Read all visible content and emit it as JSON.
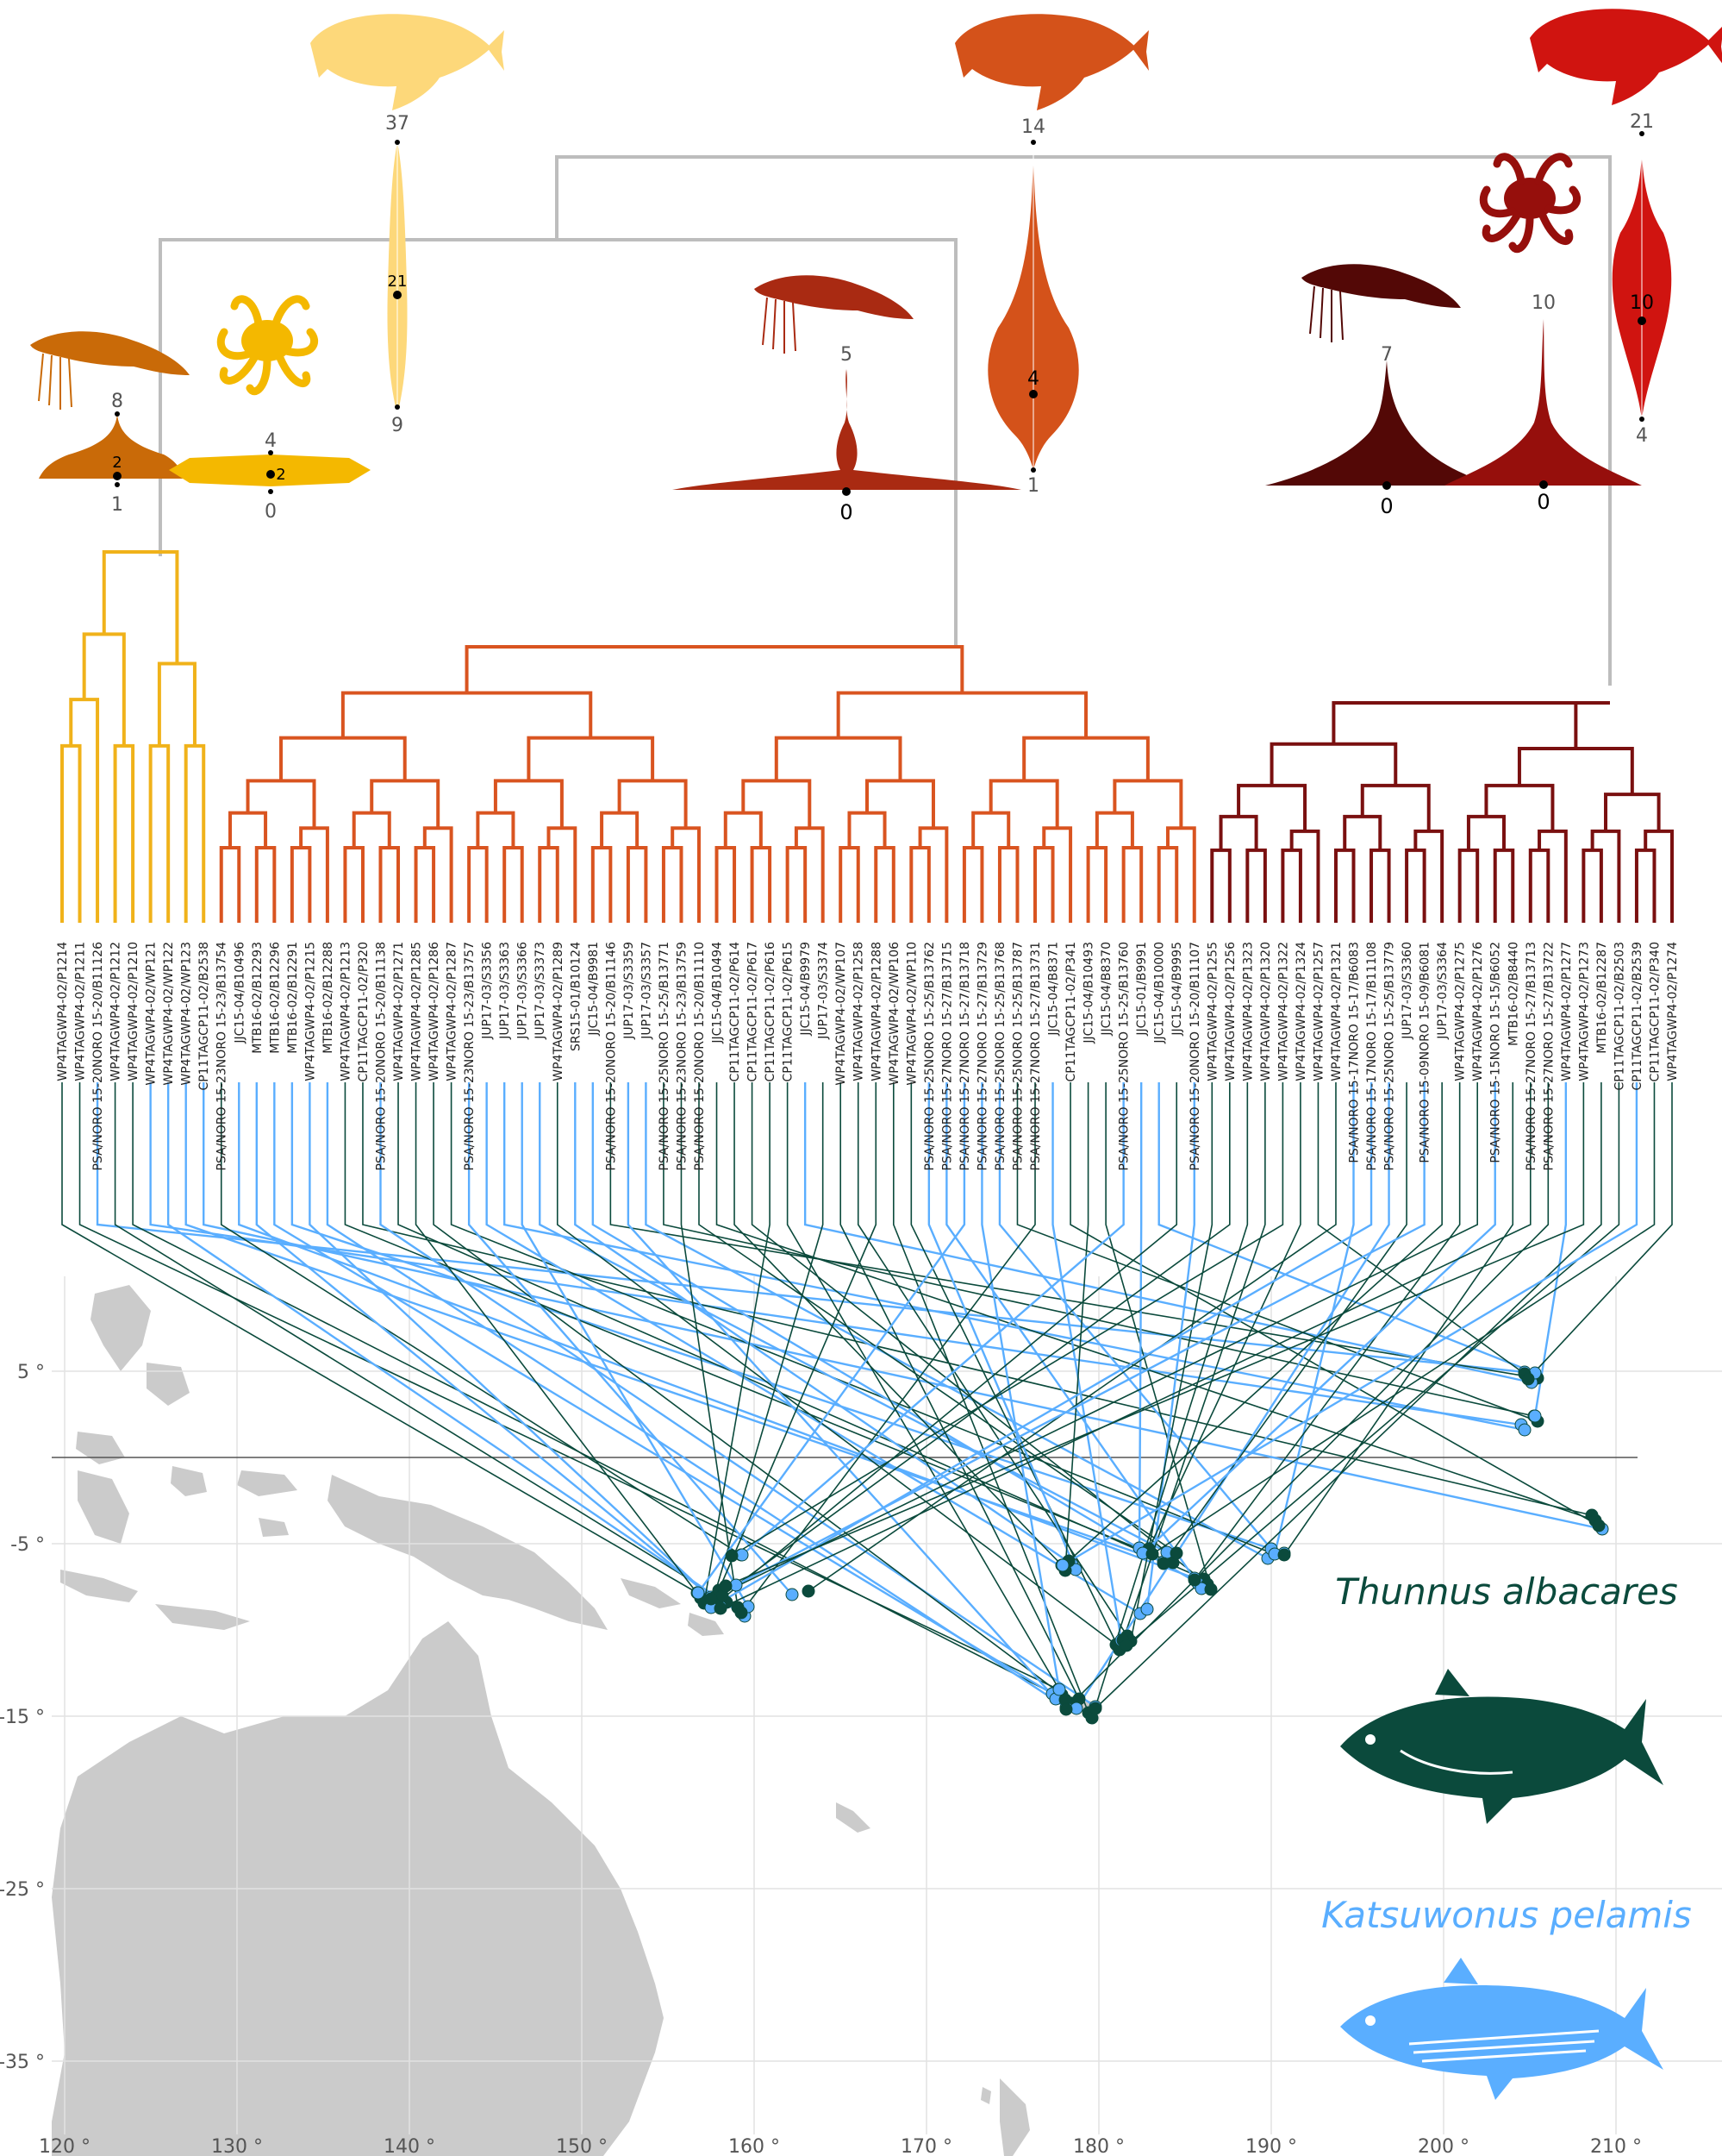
{
  "colors": {
    "yellowfin": "#0b4a3c",
    "skipjack": "#5aaeff",
    "ocean": "#ffffff",
    "land": "#c9c9c9",
    "backbone": "#bbbbbb",
    "cladeA": "#f0b21a",
    "cladeB": "#d95420",
    "cladeC": "#7a1010"
  },
  "map": {
    "lon_ticks": [
      "120 °",
      "130 °",
      "140 °",
      "150 °",
      "160 °",
      "170 °",
      "180 °",
      "190 °",
      "200 °",
      "210 °"
    ],
    "lat_ticks": [
      "5 °",
      "-5 °",
      "-15 °",
      "-25 °",
      "-35 °"
    ]
  },
  "legend": {
    "species_1": "Thunnus albacares",
    "species_2": "Katsuwonus pelamis"
  },
  "silhouettes": {
    "fish_1": "fish-icon",
    "fish_2": "fish-icon",
    "fish_3": "fish-icon",
    "shrimp_1": "shrimp-icon",
    "shrimp_2": "shrimp-icon",
    "shrimp_3": "shrimp-icon",
    "octopus_1": "octopus-icon",
    "octopus_2": "octopus-icon"
  },
  "violins": [
    {
      "id": "shrimp-a",
      "max": "8",
      "median": "2",
      "min": "1",
      "color": "#c96a08"
    },
    {
      "id": "octopus-a",
      "max": "4",
      "median": "2",
      "min": "0",
      "color": "#f4b800"
    },
    {
      "id": "fish-a",
      "max": "37",
      "median": "21",
      "min": "9",
      "color": "#fdd87a"
    },
    {
      "id": "shrimp-b",
      "max": "5",
      "median": "0",
      "min": "",
      "color": "#a92a12"
    },
    {
      "id": "fish-b",
      "max": "14",
      "median": "4",
      "min": "1",
      "color": "#d4521a"
    },
    {
      "id": "shrimp-c",
      "max": "7",
      "median": "0",
      "min": "",
      "color": "#530806"
    },
    {
      "id": "octopus-c",
      "max": "10",
      "median": "0",
      "min": "",
      "color": "#960f0c"
    },
    {
      "id": "fish-c",
      "max": "21",
      "median": "10",
      "min": "4",
      "color": "#d01410"
    }
  ],
  "leaves": [
    {
      "label": "WP4TAGWP4-02/P1214",
      "sp": "T"
    },
    {
      "label": "WP4TAGWP4-02/P1211",
      "sp": "T"
    },
    {
      "label": "PSA/NORO 15-20NORO 15-20/B11126",
      "sp": "K"
    },
    {
      "label": "WP4TAGWP4-02/P1212",
      "sp": "T"
    },
    {
      "label": "WP4TAGWP4-02/P1210",
      "sp": "T"
    },
    {
      "label": "WP4TAGWP4-02/WP121",
      "sp": "K"
    },
    {
      "label": "WP4TAGWP4-02/WP122",
      "sp": "K"
    },
    {
      "label": "WP4TAGWP4-02/WP123",
      "sp": "K"
    },
    {
      "label": "CP11TAGCP11-02/B2538",
      "sp": "K"
    },
    {
      "label": "PSA/NORO 15-23NORO 15-23/B13754",
      "sp": "T"
    },
    {
      "label": "JJC15-04/B10496",
      "sp": "K"
    },
    {
      "label": "MTB16-02/B12293",
      "sp": "K"
    },
    {
      "label": "MTB16-02/B12296",
      "sp": "K"
    },
    {
      "label": "MTB16-02/B12291",
      "sp": "K"
    },
    {
      "label": "WP4TAGWP4-02/P1215",
      "sp": "K"
    },
    {
      "label": "MTB16-02/B12288",
      "sp": "K"
    },
    {
      "label": "WP4TAGWP4-02/P1213",
      "sp": "T"
    },
    {
      "label": "CP11TAGCP11-02/P320",
      "sp": "T"
    },
    {
      "label": "PSA/NORO 15-20NORO 15-20/B11138",
      "sp": "K"
    },
    {
      "label": "WP4TAGWP4-02/P1271",
      "sp": "T"
    },
    {
      "label": "WP4TAGWP4-02/P1285",
      "sp": "T"
    },
    {
      "label": "WP4TAGWP4-02/P1286",
      "sp": "T"
    },
    {
      "label": "WP4TAGWP4-02/P1287",
      "sp": "T"
    },
    {
      "label": "PSA/NORO 15-23NORO 15-23/B13757",
      "sp": "K"
    },
    {
      "label": "JUP17-03/S3356",
      "sp": "K"
    },
    {
      "label": "JUP17-03/S3363",
      "sp": "K"
    },
    {
      "label": "JUP17-03/S3366",
      "sp": "K"
    },
    {
      "label": "JUP17-03/S3373",
      "sp": "K"
    },
    {
      "label": "WP4TAGWP4-02/P1289",
      "sp": "T"
    },
    {
      "label": "SRS15-01/B10124",
      "sp": "K"
    },
    {
      "label": "JJC15-04/B9981",
      "sp": "K"
    },
    {
      "label": "PSA/NORO 15-20NORO 15-20/B11146",
      "sp": "T"
    },
    {
      "label": "JUP17-03/S3359",
      "sp": "K"
    },
    {
      "label": "JUP17-03/S3357",
      "sp": "K"
    },
    {
      "label": "PSA/NORO 15-25NORO 15-25/B13771",
      "sp": "T"
    },
    {
      "label": "PSA/NORO 15-23NORO 15-23/B13759",
      "sp": "T"
    },
    {
      "label": "PSA/NORO 15-20NORO 15-20/B11110",
      "sp": "T"
    },
    {
      "label": "JJC15-04/B10494",
      "sp": "T"
    },
    {
      "label": "CP11TAGCP11-02/P614",
      "sp": "T"
    },
    {
      "label": "CP11TAGCP11-02/P617",
      "sp": "T"
    },
    {
      "label": "CP11TAGCP11-02/P616",
      "sp": "T"
    },
    {
      "label": "CP11TAGCP11-02/P615",
      "sp": "T"
    },
    {
      "label": "JJC15-04/B9979",
      "sp": "K"
    },
    {
      "label": "JUP17-03/S3374",
      "sp": "T"
    },
    {
      "label": "WP4TAGWP4-02/WP107",
      "sp": "T"
    },
    {
      "label": "WP4TAGWP4-02/P1258",
      "sp": "T"
    },
    {
      "label": "WP4TAGWP4-02/P1288",
      "sp": "T"
    },
    {
      "label": "WP4TAGWP4-02/WP106",
      "sp": "T"
    },
    {
      "label": "WP4TAGWP4-02/WP110",
      "sp": "T"
    },
    {
      "label": "PSA/NORO 15-25NORO 15-25/B13762",
      "sp": "K"
    },
    {
      "label": "PSA/NORO 15-27NORO 15-27/B13715",
      "sp": "K"
    },
    {
      "label": "PSA/NORO 15-27NORO 15-27/B13718",
      "sp": "K"
    },
    {
      "label": "PSA/NORO 15-27NORO 15-27/B13729",
      "sp": "K"
    },
    {
      "label": "PSA/NORO 15-25NORO 15-25/B13768",
      "sp": "K"
    },
    {
      "label": "PSA/NORO 15-25NORO 15-25/B13787",
      "sp": "T"
    },
    {
      "label": "PSA/NORO 15-27NORO 15-27/B13731",
      "sp": "T"
    },
    {
      "label": "JJC15-04/B8371",
      "sp": "K"
    },
    {
      "label": "CP11TAGCP11-02/P341",
      "sp": "T"
    },
    {
      "label": "JJC15-04/B10493",
      "sp": "T"
    },
    {
      "label": "JJC15-04/B8370",
      "sp": "T"
    },
    {
      "label": "PSA/NORO 15-25NORO 15-25/B13760",
      "sp": "K"
    },
    {
      "label": "JJC15-01/B9991",
      "sp": "K"
    },
    {
      "label": "JJC15-04/B10000",
      "sp": "K"
    },
    {
      "label": "JJC15-04/B9995",
      "sp": "T"
    },
    {
      "label": "PSA/NORO 15-20NORO 15-20/B11107",
      "sp": "K"
    },
    {
      "label": "WP4TAGWP4-02/P1255",
      "sp": "T"
    },
    {
      "label": "WP4TAGWP4-02/P1256",
      "sp": "T"
    },
    {
      "label": "WP4TAGWP4-02/P1323",
      "sp": "T"
    },
    {
      "label": "WP4TAGWP4-02/P1320",
      "sp": "T"
    },
    {
      "label": "WP4TAGWP4-02/P1322",
      "sp": "T"
    },
    {
      "label": "WP4TAGWP4-02/P1324",
      "sp": "T"
    },
    {
      "label": "WP4TAGWP4-02/P1257",
      "sp": "T"
    },
    {
      "label": "WP4TAGWP4-02/P1321",
      "sp": "T"
    },
    {
      "label": "PSA/NORO 15-17NORO 15-17/B6083",
      "sp": "K"
    },
    {
      "label": "PSA/NORO 15-17NORO 15-17/B11108",
      "sp": "K"
    },
    {
      "label": "PSA/NORO 15-25NORO 15-25/B13779",
      "sp": "K"
    },
    {
      "label": "JUP17-03/S3360",
      "sp": "T"
    },
    {
      "label": "PSA/NORO 15-09NORO 15-09/B6081",
      "sp": "K"
    },
    {
      "label": "JUP17-03/S3364",
      "sp": "T"
    },
    {
      "label": "WP4TAGWP4-02/P1275",
      "sp": "T"
    },
    {
      "label": "WP4TAGWP4-02/P1276",
      "sp": "T"
    },
    {
      "label": "PSA/NORO 15-15NORO 15-15/B6052",
      "sp": "K"
    },
    {
      "label": "MTB16-02/B8440",
      "sp": "T"
    },
    {
      "label": "PSA/NORO 15-27NORO 15-27/B13713",
      "sp": "T"
    },
    {
      "label": "PSA/NORO 15-27NORO 15-27/B13722",
      "sp": "T"
    },
    {
      "label": "WP4TAGWP4-02/P1277",
      "sp": "K"
    },
    {
      "label": "WP4TAGWP4-02/P1273",
      "sp": "T"
    },
    {
      "label": "MTB16-02/B12287",
      "sp": "T"
    },
    {
      "label": "CP11TAGCP11-02/B2503",
      "sp": "T"
    },
    {
      "label": "CP11TAGCP11-02/B2539",
      "sp": "K"
    },
    {
      "label": "CP11TAGCP11-02/P340",
      "sp": "T"
    },
    {
      "label": "WP4TAGWP4-02/P1274",
      "sp": "T"
    }
  ]
}
